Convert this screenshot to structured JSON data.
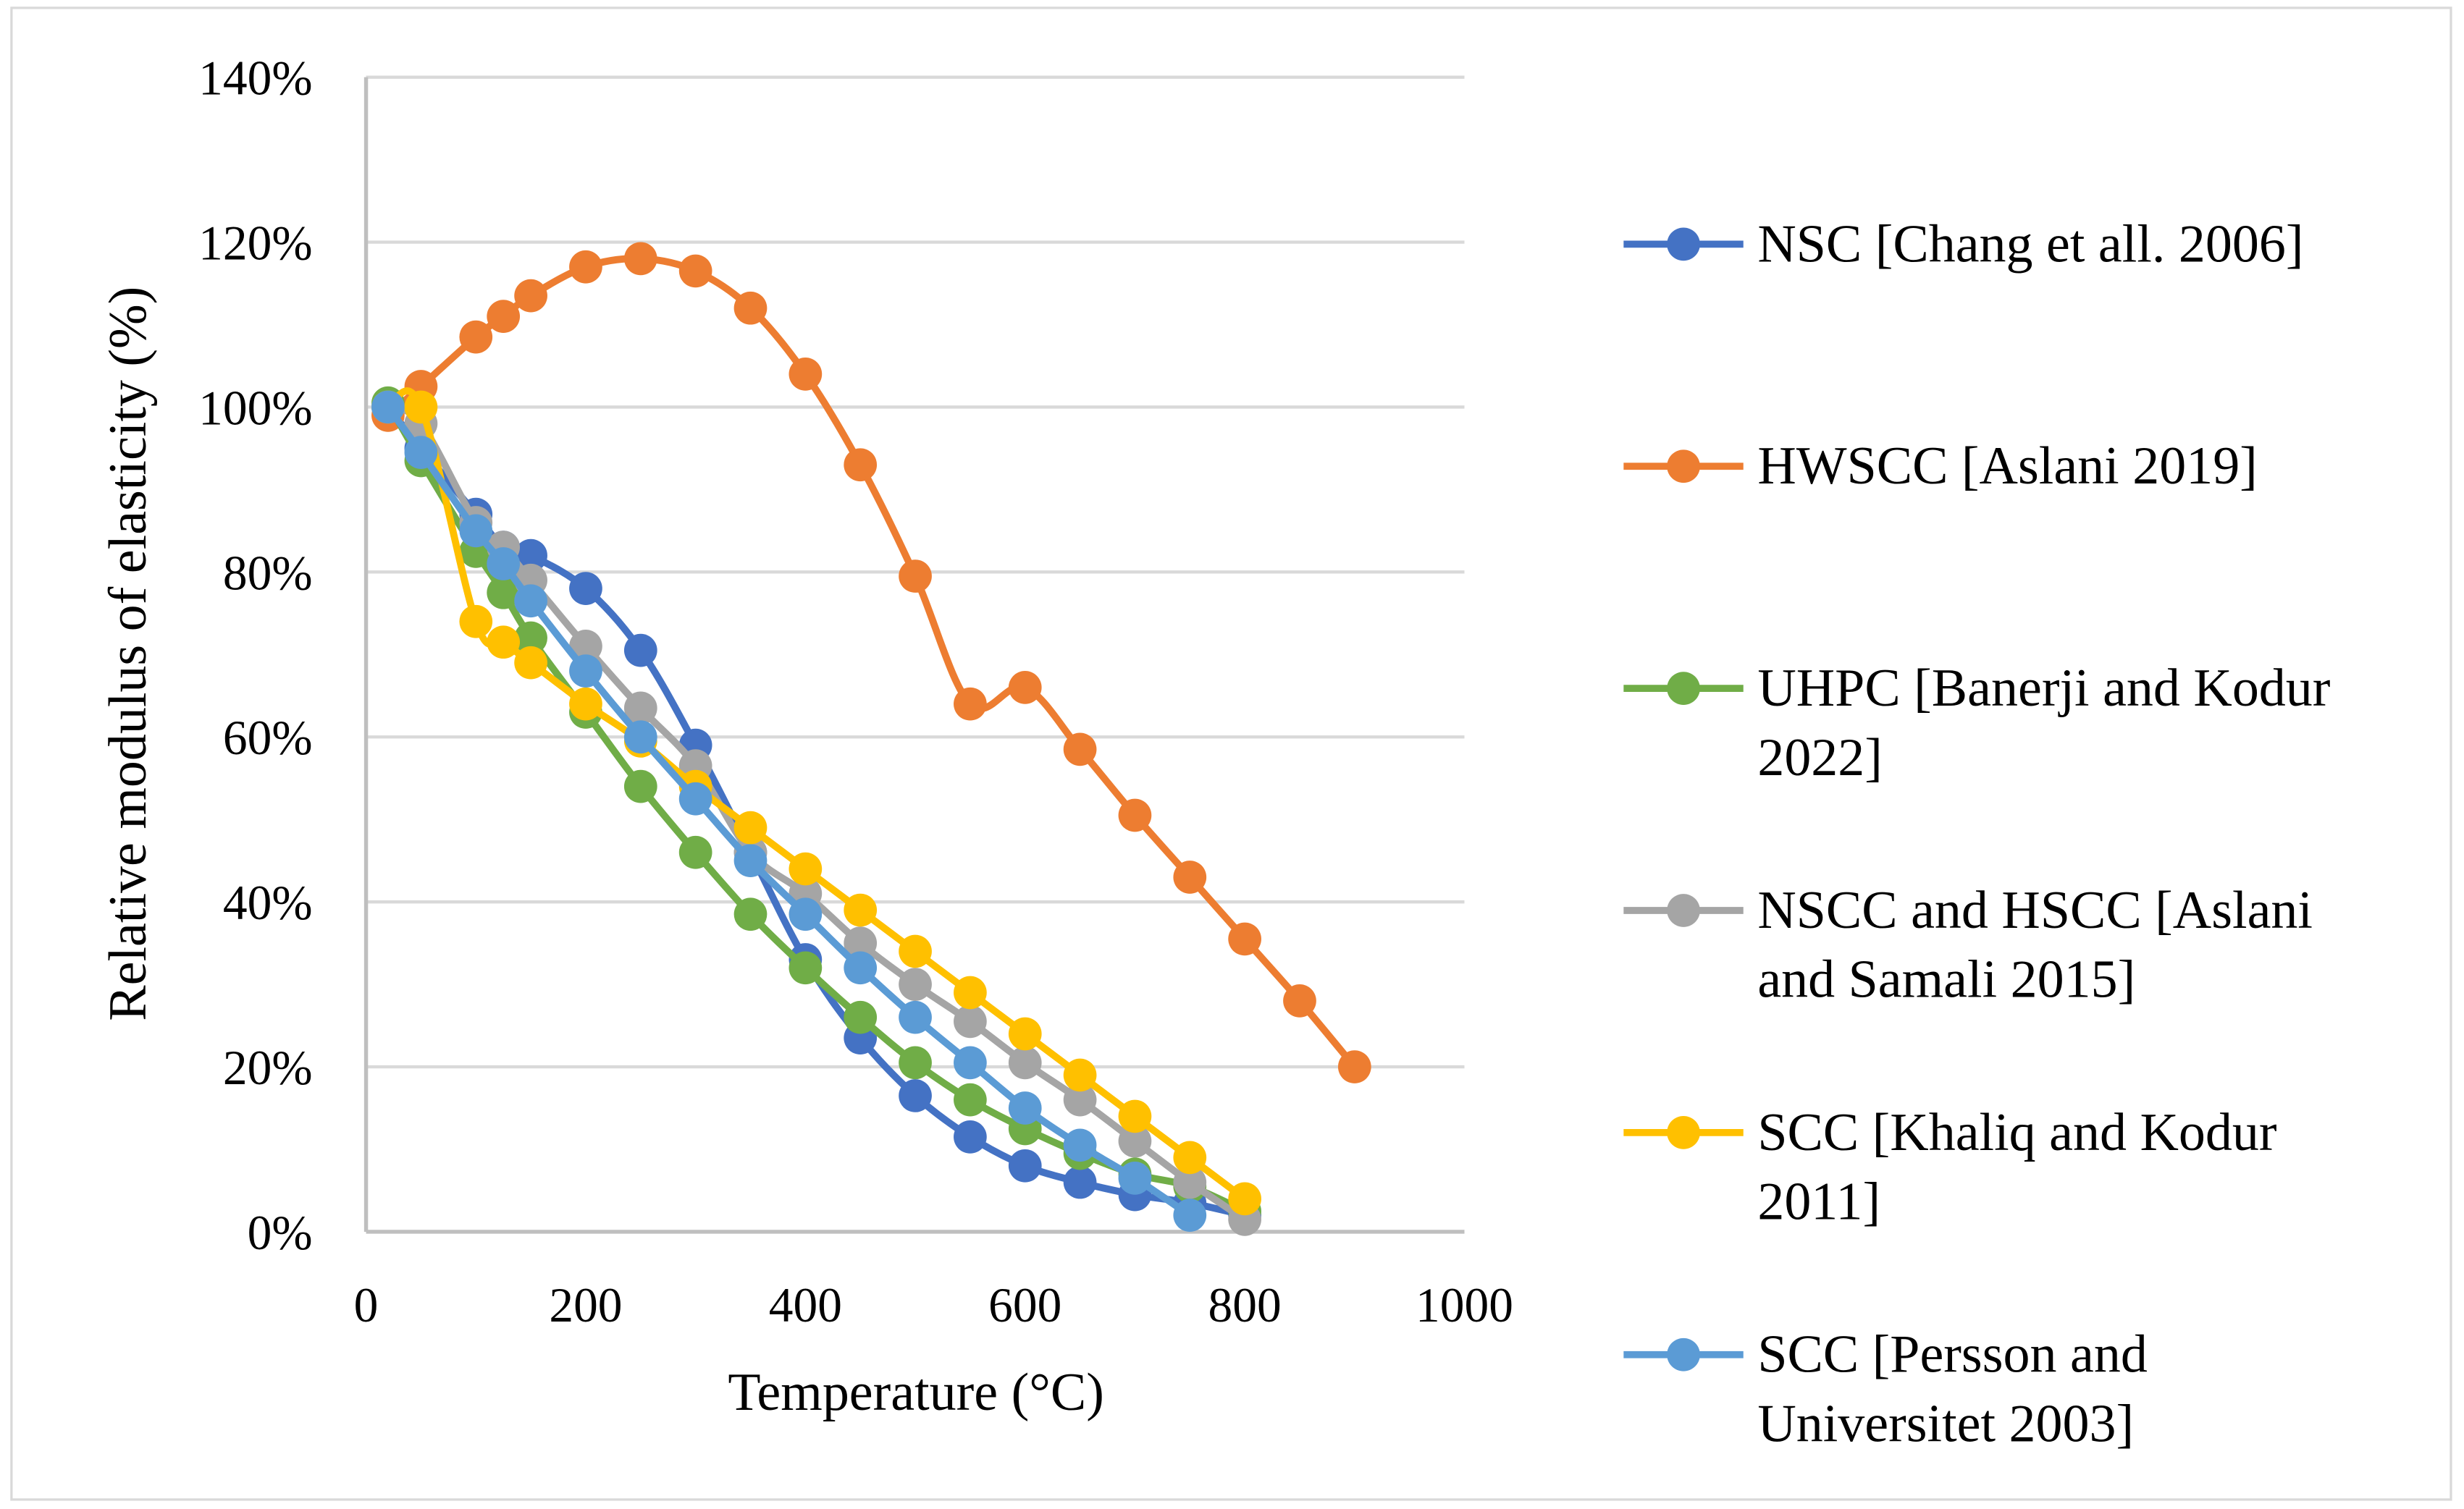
{
  "chart_data": {
    "type": "line",
    "title": "",
    "xlabel": "Temperature (°C)",
    "ylabel": "Relative modulus of elasticity (%)",
    "xlim": [
      0,
      1000
    ],
    "ylim": [
      0,
      140
    ],
    "xticks": [
      0,
      200,
      400,
      600,
      800,
      1000
    ],
    "yticks": [
      0,
      20,
      40,
      60,
      80,
      100,
      120,
      140
    ],
    "ytick_suffix": "%",
    "grid": "horizontal",
    "legend_position": "right",
    "series": [
      {
        "name": "NSC [Chang et all. 2006]",
        "legend_lines": [
          "NSC [Chang et all. 2006]"
        ],
        "color": "#4472C4",
        "x": [
          20,
          50,
          100,
          125,
          150,
          200,
          250,
          300,
          350,
          400,
          450,
          500,
          550,
          600,
          650,
          700,
          750,
          800
        ],
        "y": [
          100,
          95,
          87,
          83,
          82,
          78,
          70.5,
          59,
          46,
          33,
          23.5,
          16.5,
          11.5,
          8,
          6,
          4.5,
          3.5,
          2
        ]
      },
      {
        "name": "HWSCC [Aslani 2019]",
        "legend_lines": [
          "HWSCC [Aslani 2019]"
        ],
        "color": "#ED7D31",
        "x": [
          20,
          50,
          100,
          125,
          150,
          200,
          250,
          300,
          350,
          400,
          450,
          500,
          550,
          600,
          650,
          700,
          750,
          800,
          850,
          900
        ],
        "y": [
          99,
          102.5,
          108.5,
          111,
          113.5,
          117,
          118,
          116.5,
          112,
          104,
          93,
          79.5,
          64,
          66,
          58.5,
          50.5,
          43,
          35.5,
          28,
          20
        ]
      },
      {
        "name": "UHPC [Banerji and Kodur 2022]",
        "legend_lines": [
          "UHPC [Banerji and Kodur",
          "2022]"
        ],
        "color": "#70AD47",
        "x": [
          20,
          50,
          100,
          125,
          150,
          200,
          250,
          300,
          350,
          400,
          450,
          500,
          550,
          600,
          650,
          700,
          750,
          800
        ],
        "y": [
          100.5,
          93.5,
          82.5,
          77.5,
          72,
          63,
          54,
          46,
          38.5,
          32,
          26,
          20.5,
          16,
          12.5,
          9.5,
          7,
          5.5,
          2.5
        ]
      },
      {
        "name": "NSCC and HSCC [Aslani and Samali 2015]",
        "legend_lines": [
          "NSCC and HSCC [Aslani",
          "and Samali 2015]"
        ],
        "color": "#A5A5A5",
        "x": [
          20,
          50,
          100,
          125,
          150,
          200,
          250,
          300,
          350,
          400,
          450,
          500,
          550,
          600,
          650,
          700,
          750,
          800
        ],
        "y": [
          100,
          98,
          86,
          83,
          79,
          71,
          63.5,
          56.5,
          46,
          41,
          35,
          30,
          25.5,
          20.5,
          16,
          11,
          6,
          1.5
        ]
      },
      {
        "name": "SCC [Khaliq and Kodur 2011]",
        "legend_lines": [
          "SCC [Khaliq and Kodur",
          "2011]"
        ],
        "color": "#FFC000",
        "x": [
          20,
          50,
          100,
          125,
          150,
          200,
          250,
          300,
          350,
          400,
          450,
          500,
          550,
          600,
          650,
          700,
          750,
          800
        ],
        "y": [
          100,
          100,
          74,
          71.5,
          69,
          64,
          59.5,
          54,
          49,
          44,
          39,
          34,
          29,
          24,
          19,
          14,
          9,
          4
        ]
      },
      {
        "name": "SCC [Persson and Universitet 2003]",
        "legend_lines": [
          "SCC [Persson and",
          "Universitet 2003]"
        ],
        "color": "#5B9BD5",
        "x": [
          20,
          50,
          100,
          125,
          150,
          200,
          250,
          300,
          350,
          400,
          450,
          500,
          550,
          600,
          650,
          700,
          750
        ],
        "y": [
          100,
          94.5,
          85,
          81,
          76.5,
          68,
          60,
          52.5,
          45,
          38.5,
          32,
          26,
          20.5,
          15,
          10.5,
          6.5,
          2
        ]
      }
    ]
  }
}
